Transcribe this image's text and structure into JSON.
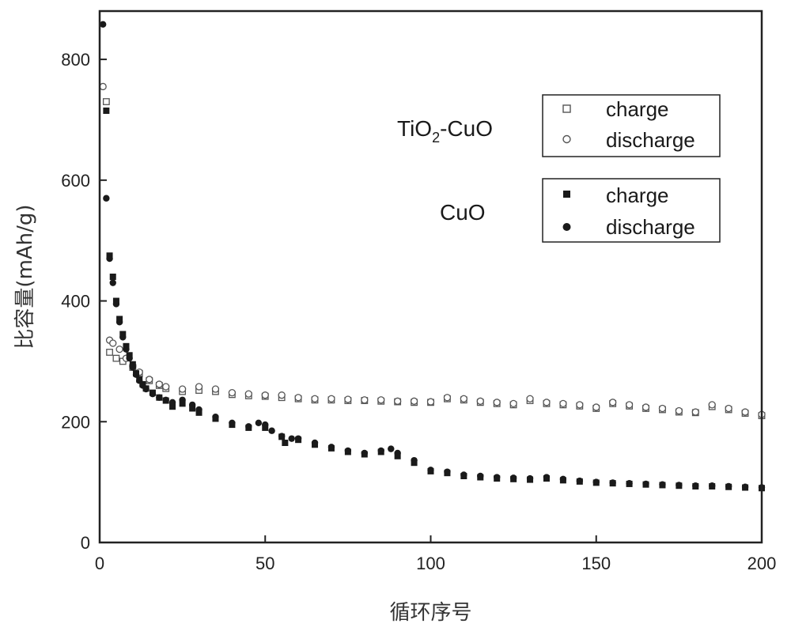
{
  "chart_data": {
    "type": "scatter",
    "xlabel": "循环序号",
    "ylabel": "比容量(mAh/g)",
    "xlim": [
      0,
      200
    ],
    "ylim": [
      0,
      880
    ],
    "xticks": [
      0,
      50,
      100,
      150,
      200
    ],
    "yticks": [
      0,
      200,
      400,
      600,
      800
    ],
    "grid": false,
    "legend": [
      {
        "group": "TiO2-CuO",
        "group_parts": {
          "base": "TiO",
          "sub": "2",
          "rest": "-CuO"
        },
        "placement": "upper-right",
        "entries": [
          {
            "label": "charge",
            "marker": "square",
            "filled": false
          },
          {
            "label": "discharge",
            "marker": "circle",
            "filled": false
          }
        ]
      },
      {
        "group": "CuO",
        "placement": "right",
        "entries": [
          {
            "label": "charge",
            "marker": "square",
            "filled": true
          },
          {
            "label": "discharge",
            "marker": "circle",
            "filled": true
          }
        ]
      }
    ],
    "series": [
      {
        "group": "TiO2-CuO",
        "name": "charge",
        "marker": "square",
        "filled": false,
        "color": "#555555",
        "x": [
          2,
          3,
          5,
          7,
          10,
          12,
          15,
          18,
          20,
          25,
          30,
          35,
          40,
          45,
          50,
          55,
          60,
          65,
          70,
          75,
          80,
          85,
          90,
          95,
          100,
          105,
          110,
          115,
          120,
          125,
          130,
          135,
          140,
          145,
          150,
          155,
          160,
          165,
          170,
          175,
          180,
          185,
          190,
          195,
          200
        ],
        "y": [
          730,
          315,
          305,
          300,
          290,
          280,
          268,
          260,
          255,
          250,
          252,
          250,
          245,
          243,
          242,
          240,
          238,
          236,
          236,
          235,
          235,
          234,
          233,
          232,
          232,
          238,
          236,
          232,
          230,
          228,
          235,
          230,
          228,
          226,
          222,
          230,
          226,
          222,
          220,
          216,
          215,
          225,
          220,
          214,
          210
        ]
      },
      {
        "group": "TiO2-CuO",
        "name": "discharge",
        "marker": "circle",
        "filled": false,
        "color": "#555555",
        "x": [
          1,
          3,
          4,
          6,
          8,
          10,
          12,
          15,
          18,
          20,
          25,
          30,
          35,
          40,
          45,
          50,
          55,
          60,
          65,
          70,
          75,
          80,
          85,
          90,
          95,
          100,
          105,
          110,
          115,
          120,
          125,
          130,
          135,
          140,
          145,
          150,
          155,
          160,
          165,
          170,
          175,
          180,
          185,
          190,
          195,
          200
        ],
        "y": [
          755,
          335,
          330,
          320,
          305,
          292,
          282,
          270,
          262,
          258,
          254,
          258,
          254,
          248,
          246,
          244,
          244,
          240,
          238,
          238,
          237,
          236,
          236,
          234,
          234,
          233,
          240,
          238,
          234,
          232,
          230,
          238,
          232,
          230,
          228,
          224,
          232,
          228,
          224,
          222,
          218,
          216,
          228,
          222,
          216,
          212
        ]
      },
      {
        "group": "CuO",
        "name": "charge",
        "marker": "square",
        "filled": true,
        "color": "#1a1a1a",
        "x": [
          2,
          3,
          4,
          5,
          6,
          7,
          8,
          9,
          10,
          11,
          12,
          13,
          14,
          16,
          18,
          20,
          22,
          25,
          28,
          30,
          35,
          40,
          45,
          50,
          55,
          56,
          60,
          65,
          70,
          75,
          80,
          85,
          90,
          95,
          100,
          105,
          110,
          115,
          120,
          125,
          130,
          135,
          140,
          145,
          150,
          155,
          160,
          165,
          170,
          175,
          180,
          185,
          190,
          195,
          200
        ],
        "y": [
          715,
          475,
          440,
          400,
          370,
          345,
          325,
          310,
          295,
          280,
          270,
          262,
          255,
          248,
          240,
          235,
          225,
          230,
          222,
          215,
          205,
          195,
          190,
          190,
          175,
          165,
          170,
          162,
          156,
          150,
          146,
          150,
          143,
          132,
          118,
          115,
          110,
          108,
          106,
          105,
          104,
          106,
          103,
          101,
          99,
          98,
          97,
          96,
          95,
          94,
          93,
          93,
          92,
          91,
          90
        ]
      },
      {
        "group": "CuO",
        "name": "discharge",
        "marker": "circle",
        "filled": true,
        "color": "#1a1a1a",
        "x": [
          1,
          2,
          3,
          4,
          5,
          6,
          7,
          8,
          9,
          10,
          11,
          12,
          13,
          14,
          16,
          18,
          20,
          22,
          25,
          28,
          30,
          35,
          40,
          45,
          48,
          50,
          52,
          55,
          58,
          60,
          65,
          70,
          75,
          80,
          85,
          88,
          90,
          95,
          100,
          105,
          110,
          115,
          120,
          125,
          130,
          135,
          140,
          145,
          150,
          155,
          160,
          165,
          170,
          175,
          180,
          185,
          190,
          195,
          200
        ],
        "y": [
          858,
          570,
          470,
          430,
          395,
          365,
          340,
          320,
          305,
          290,
          278,
          268,
          260,
          254,
          246,
          240,
          236,
          232,
          236,
          228,
          220,
          208,
          198,
          192,
          198,
          195,
          185,
          176,
          172,
          172,
          165,
          158,
          152,
          148,
          152,
          155,
          148,
          136,
          120,
          117,
          112,
          110,
          108,
          107,
          106,
          108,
          105,
          102,
          100,
          99,
          98,
          97,
          96,
          95,
          94,
          94,
          93,
          92,
          91
        ]
      }
    ]
  }
}
